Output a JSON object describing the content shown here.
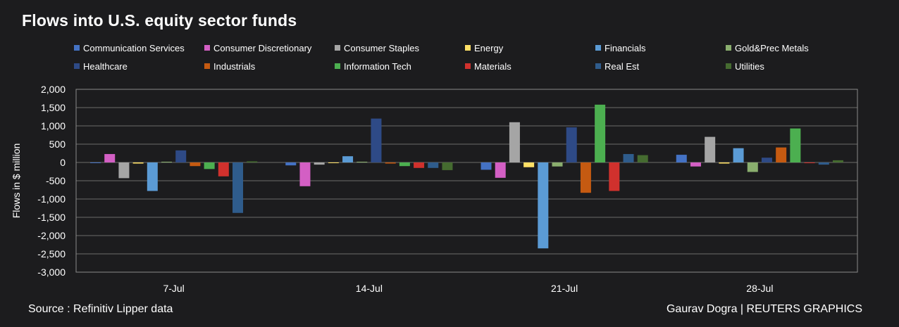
{
  "title": "Flows into U.S. equity sector funds",
  "source": "Source : Refinitiv Lipper data",
  "credit": "Gaurav Dogra | REUTERS GRAPHICS",
  "chart_data": {
    "type": "bar",
    "title": "Flows into U.S. equity sector funds",
    "xlabel": "",
    "ylabel": "Flows in $ million",
    "ylim": [
      -3000,
      2000
    ],
    "yticks": [
      2000,
      1500,
      1000,
      500,
      0,
      -500,
      -1000,
      -1500,
      -2000,
      -2500,
      -3000
    ],
    "ytick_labels": [
      "2,000",
      "1,500",
      "1,000",
      "500",
      "0",
      "-500",
      "-1,000",
      "-1,500",
      "-2,000",
      "-2,500",
      "-3,000"
    ],
    "categories": [
      "7-Jul",
      "14-Jul",
      "21-Jul",
      "28-Jul"
    ],
    "grid": true,
    "legend_position": "top",
    "series": [
      {
        "name": "Communication Services",
        "color": "#4472c4",
        "values": [
          -10,
          -80,
          -200,
          210
        ]
      },
      {
        "name": "Consumer Discretionary",
        "color": "#d35fc4",
        "values": [
          230,
          -650,
          -420,
          -110
        ]
      },
      {
        "name": "Consumer Staples",
        "color": "#a5a5a5",
        "values": [
          -430,
          -60,
          1100,
          700
        ]
      },
      {
        "name": "Energy",
        "color": "#ffe066",
        "values": [
          -30,
          -10,
          -130,
          -30
        ]
      },
      {
        "name": "Financials",
        "color": "#5b9bd5",
        "values": [
          -780,
          170,
          -2350,
          390
        ]
      },
      {
        "name": "Gold&Prec Metals",
        "color": "#8aae6e",
        "values": [
          20,
          20,
          -110,
          -260
        ]
      },
      {
        "name": "Healthcare",
        "color": "#2e4a86",
        "values": [
          330,
          1200,
          960,
          130
        ]
      },
      {
        "name": "Industrials",
        "color": "#c55a11",
        "values": [
          -100,
          -30,
          -830,
          410
        ]
      },
      {
        "name": "Information Tech",
        "color": "#4caf50",
        "values": [
          -180,
          -100,
          1580,
          930
        ]
      },
      {
        "name": "Materials",
        "color": "#d0312d",
        "values": [
          -380,
          -150,
          -780,
          -20
        ]
      },
      {
        "name": "Real Est",
        "color": "#2f5c8c",
        "values": [
          -1380,
          -150,
          230,
          -60
        ]
      },
      {
        "name": "Utilities",
        "color": "#456b30",
        "values": [
          30,
          -210,
          200,
          60
        ]
      }
    ]
  }
}
